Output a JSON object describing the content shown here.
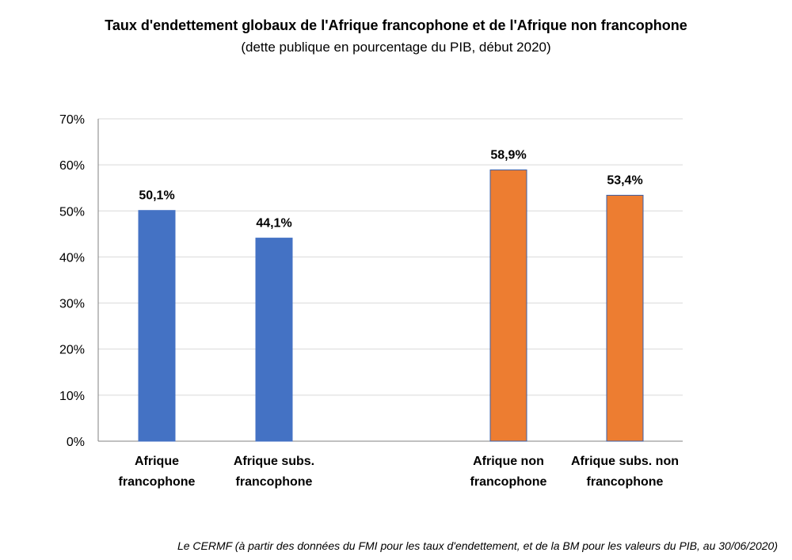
{
  "header": {
    "title": "Taux d'endettement globaux de l'Afrique francophone et de l'Afrique non francophone",
    "subtitle": "(dette publique en pourcentage du PIB, début 2020)"
  },
  "footer": {
    "source": "Le CERMF (à partir des données du FMI pour les taux d'endettement, et de la BM pour les valeurs du PIB, au 30/06/2020)"
  },
  "colors": {
    "francophone": "#4472C4",
    "non_francophone": "#ED7D31",
    "non_francophone_border": "#3A5FA8",
    "grid": "#D9D9D9",
    "axis": "#808080"
  },
  "chart_data": {
    "type": "bar",
    "categories": [
      [
        "Afrique",
        "francophone"
      ],
      [
        "Afrique subs.",
        "francophone"
      ],
      [
        "Afrique non",
        "francophone"
      ],
      [
        "Afrique subs. non",
        "francophone"
      ]
    ],
    "values": [
      50.1,
      44.1,
      58.9,
      53.4
    ],
    "data_labels": [
      "50,1%",
      "44,1%",
      "58,9%",
      "53,4%"
    ],
    "groups": [
      "francophone",
      "francophone",
      "non_francophone",
      "non_francophone"
    ],
    "ylim": [
      0,
      70
    ],
    "yticks": [
      0,
      10,
      20,
      30,
      40,
      50,
      60,
      70
    ],
    "ytick_labels": [
      "0%",
      "10%",
      "20%",
      "30%",
      "40%",
      "50%",
      "60%",
      "70%"
    ],
    "grid": true,
    "legend": "none"
  }
}
